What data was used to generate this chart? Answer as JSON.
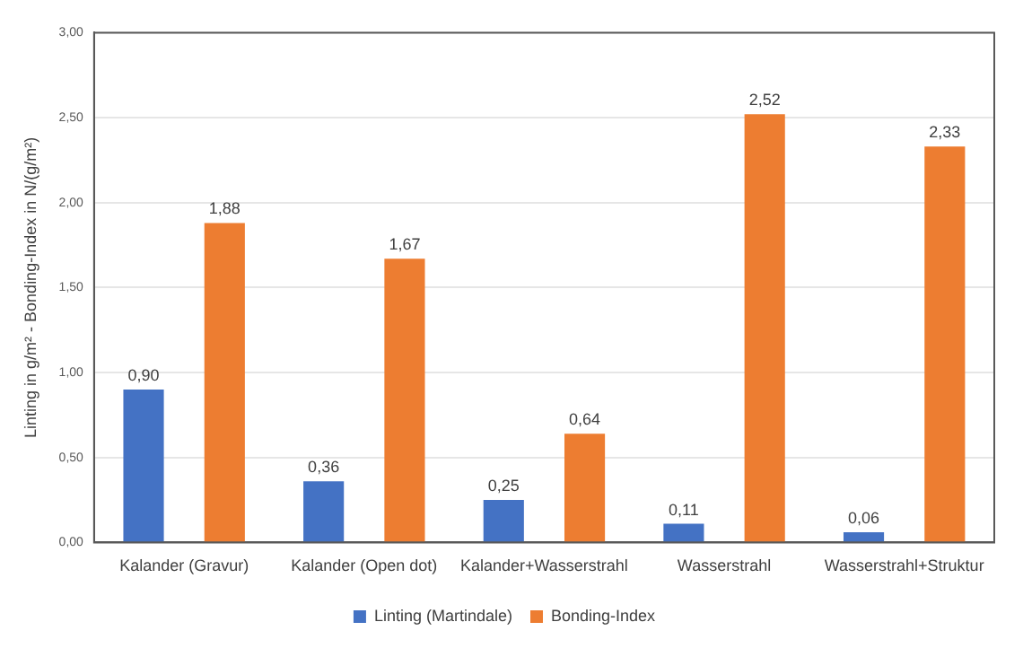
{
  "chart_data": {
    "type": "bar",
    "ylabel": "Linting in g/m² - Bonding-Index in N/(g/m²)",
    "categories": [
      "Kalander (Gravur)",
      "Kalander (Open dot)",
      "Kalander+Wasserstrahl",
      "Wasserstrahl",
      "Wasserstrahl+Struktur"
    ],
    "series": [
      {
        "name": "Linting (Martindale)",
        "color": "#4472c4",
        "values": [
          0.9,
          0.36,
          0.25,
          0.11,
          0.06
        ],
        "value_labels": [
          "0,90",
          "0,36",
          "0,25",
          "0,11",
          "0,06"
        ]
      },
      {
        "name": "Bonding-Index",
        "color": "#ed7d31",
        "values": [
          1.88,
          1.67,
          0.64,
          2.52,
          2.33
        ],
        "value_labels": [
          "1,88",
          "1,67",
          "0,64",
          "2,52",
          "2,33"
        ]
      }
    ],
    "ylim": [
      0,
      3
    ],
    "yticks": [
      {
        "value": 0,
        "label": "0,00"
      },
      {
        "value": 0.5,
        "label": "0,50"
      },
      {
        "value": 1,
        "label": "1,00"
      },
      {
        "value": 1.5,
        "label": "1,50"
      },
      {
        "value": 2,
        "label": "2,00"
      },
      {
        "value": 2.5,
        "label": "2,50"
      },
      {
        "value": 3,
        "label": "3,00"
      }
    ],
    "grid": "y",
    "legend": "bottom"
  }
}
